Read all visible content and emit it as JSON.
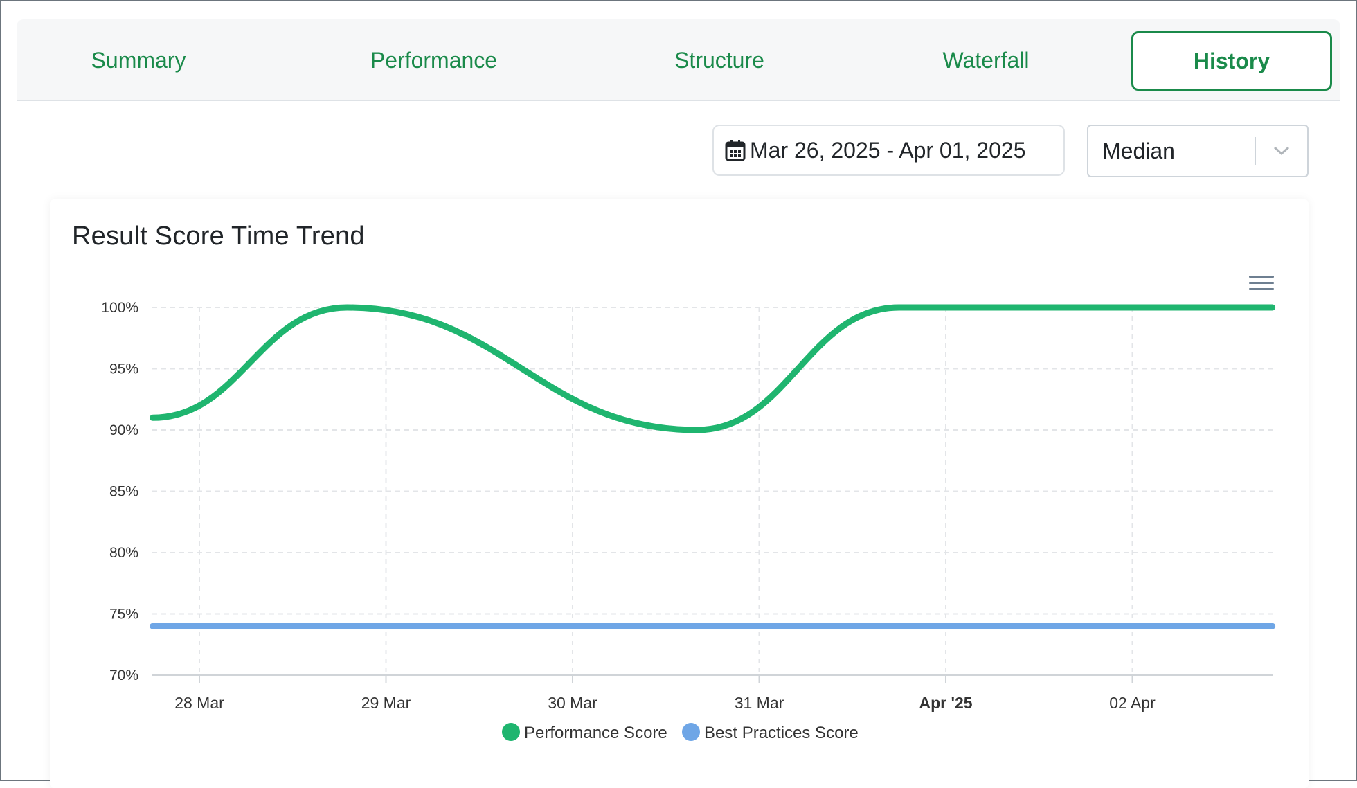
{
  "tabs": [
    {
      "label": "Summary",
      "active": false
    },
    {
      "label": "Performance",
      "active": false
    },
    {
      "label": "Structure",
      "active": false
    },
    {
      "label": "Waterfall",
      "active": false
    },
    {
      "label": "History",
      "active": true
    }
  ],
  "filters": {
    "date_range": "Mar 26, 2025 - Apr 01, 2025",
    "aggregation": "Median",
    "calendar_icon": "calendar-icon",
    "chevron_icon": "chevron-down-icon"
  },
  "card": {
    "title": "Result Score Time Trend",
    "menu_icon": "hamburger-menu-icon"
  },
  "chart_data": {
    "type": "line",
    "title": "Result Score Time Trend",
    "xlabel": "",
    "ylabel": "",
    "ylim": [
      70,
      100
    ],
    "yticks": [
      "70%",
      "75%",
      "80%",
      "85%",
      "90%",
      "95%",
      "100%"
    ],
    "xticks": [
      {
        "label": "28 Mar",
        "bold": false
      },
      {
        "label": "29 Mar",
        "bold": false
      },
      {
        "label": "30 Mar",
        "bold": false
      },
      {
        "label": "31 Mar",
        "bold": false
      },
      {
        "label": "Apr '25",
        "bold": true
      },
      {
        "label": "02 Apr",
        "bold": false
      }
    ],
    "grid": true,
    "legend_position": "bottom-center",
    "series": [
      {
        "name": "Performance Score",
        "color": "#1fb56f",
        "points": [
          {
            "x": "27 Mar 18:00",
            "y": 91
          },
          {
            "x": "28 Mar 19:00",
            "y": 100
          },
          {
            "x": "30 Mar 16:00",
            "y": 90
          },
          {
            "x": "31 Mar 18:00",
            "y": 100
          },
          {
            "x": "02 Apr 18:00",
            "y": 100
          }
        ]
      },
      {
        "name": "Best Practices Score",
        "color": "#6fa6e6",
        "points": [
          {
            "x": "27 Mar 18:00",
            "y": 74
          },
          {
            "x": "02 Apr 18:00",
            "y": 74
          }
        ]
      }
    ]
  }
}
